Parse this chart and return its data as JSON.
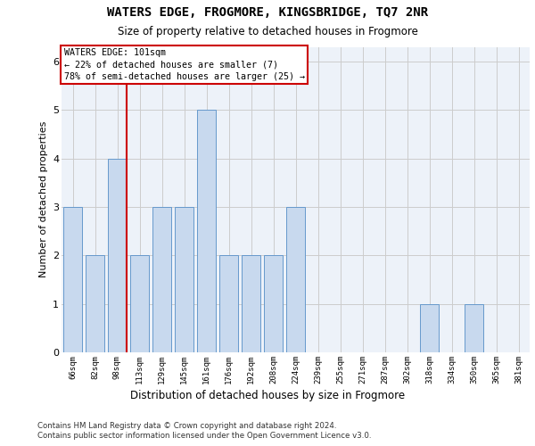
{
  "title": "WATERS EDGE, FROGMORE, KINGSBRIDGE, TQ7 2NR",
  "subtitle": "Size of property relative to detached houses in Frogmore",
  "xlabel": "Distribution of detached houses by size in Frogmore",
  "ylabel": "Number of detached properties",
  "categories": [
    "66sqm",
    "82sqm",
    "98sqm",
    "113sqm",
    "129sqm",
    "145sqm",
    "161sqm",
    "176sqm",
    "192sqm",
    "208sqm",
    "224sqm",
    "239sqm",
    "255sqm",
    "271sqm",
    "287sqm",
    "302sqm",
    "318sqm",
    "334sqm",
    "350sqm",
    "365sqm",
    "381sqm"
  ],
  "values": [
    3,
    2,
    4,
    2,
    3,
    3,
    5,
    2,
    2,
    2,
    3,
    0,
    0,
    0,
    0,
    0,
    1,
    0,
    1,
    0,
    0
  ],
  "bar_color": "#c8d9ee",
  "bar_edge_color": "#6699cc",
  "red_line_after_index": 2,
  "red_line_label": "WATERS EDGE: 101sqm",
  "annotation_line1": "← 22% of detached houses are smaller (7)",
  "annotation_line2": "78% of semi-detached houses are larger (25) →",
  "annotation_box_color": "#ffffff",
  "annotation_box_edge_color": "#cc0000",
  "red_line_color": "#cc0000",
  "ylim": [
    0,
    6.3
  ],
  "yticks": [
    0,
    1,
    2,
    3,
    4,
    5,
    6
  ],
  "grid_color": "#cccccc",
  "background_color": "#edf2f9",
  "footer1": "Contains HM Land Registry data © Crown copyright and database right 2024.",
  "footer2": "Contains public sector information licensed under the Open Government Licence v3.0."
}
